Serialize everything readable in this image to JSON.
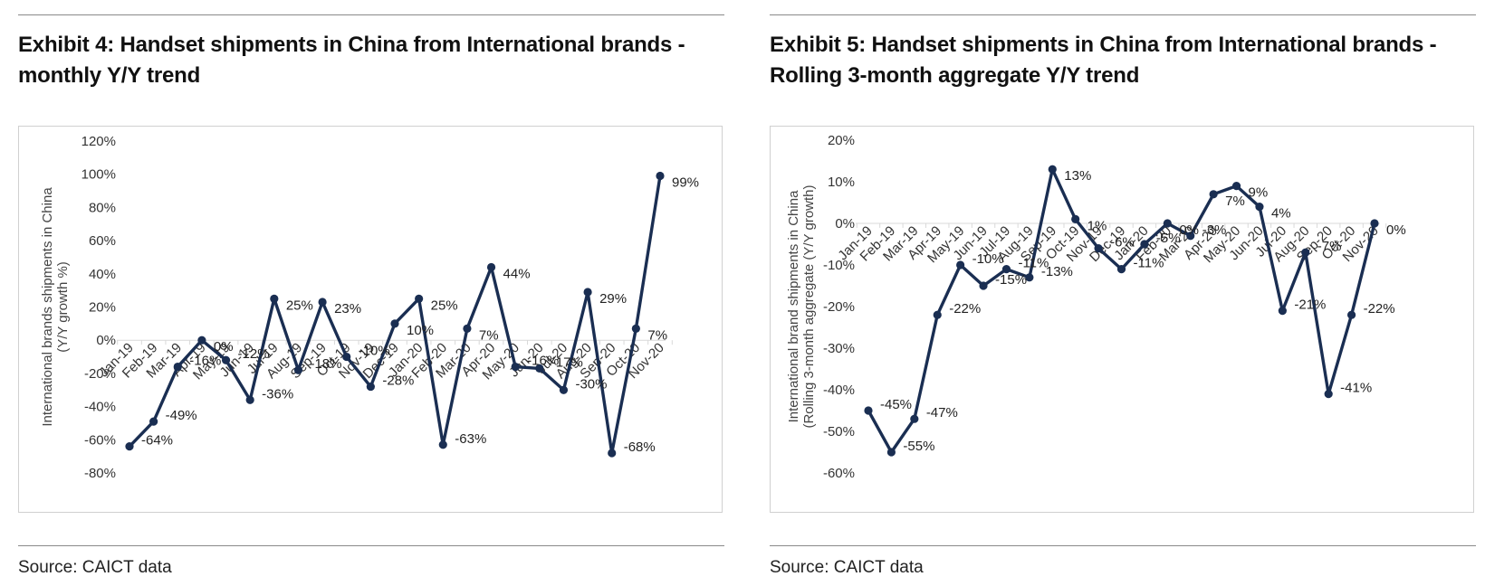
{
  "exhibit4": {
    "title": "Exhibit 4: Handset shipments in China from International brands - monthly Y/Y trend",
    "source": "Source: CAICT data"
  },
  "exhibit5": {
    "title": "Exhibit 5: Handset shipments in China from International brands - Rolling 3-month aggregate Y/Y trend",
    "source": "Source: CAICT data"
  },
  "chart_data": [
    {
      "type": "line",
      "title": "Exhibit 4: Handset shipments in China from International brands - monthly Y/Y trend",
      "ylabel_lines": [
        "International brands shipments in China",
        "(Y/Y growth %)"
      ],
      "xlabel": "",
      "ylim": [
        -80,
        120
      ],
      "yticks": [
        -80,
        -60,
        -40,
        -20,
        0,
        20,
        40,
        60,
        80,
        100,
        120
      ],
      "ytick_suffix": "%",
      "grid": false,
      "color": "#1a2e52",
      "categories": [
        "Jan-19",
        "Feb-19",
        "Mar-19",
        "Apr-19",
        "May-19",
        "Jun-19",
        "Jul-19",
        "Aug-19",
        "Sep-19",
        "Oct-19",
        "Nov-19",
        "Dec-19",
        "Jan-20",
        "Feb-20",
        "Mar-20",
        "Apr-20",
        "May-20",
        "Jun-20",
        "Jul-20",
        "Aug-20",
        "Sep-20",
        "Oct-20",
        "Nov-20"
      ],
      "values": [
        -64,
        -49,
        -16,
        0,
        -12,
        -36,
        25,
        -18,
        23,
        -10,
        -28,
        10,
        25,
        -63,
        7,
        44,
        -16,
        -17,
        -30,
        29,
        -68,
        7,
        99
      ],
      "data_labels": [
        "-64%",
        "-49%",
        "-16%",
        "0%",
        "-12%",
        "-36%",
        "25%",
        "-18%",
        "23%",
        "-10%",
        "-28%",
        "10%",
        "25%",
        "-63%",
        "7%",
        "44%",
        "-16%",
        "-17%",
        "-30%",
        "29%",
        "-68%",
        "7%",
        "99%"
      ]
    },
    {
      "type": "line",
      "title": "Exhibit 5: Handset shipments in China from International brands - Rolling 3-month aggregate Y/Y trend",
      "ylabel_lines": [
        "International brand shipments in China",
        "(Rolling  3-month aggregate (Y/Y growth)"
      ],
      "xlabel": "",
      "ylim": [
        -60,
        20
      ],
      "yticks": [
        -60,
        -50,
        -40,
        -30,
        -20,
        -10,
        0,
        10,
        20
      ],
      "ytick_suffix": "%",
      "grid": false,
      "color": "#1a2e52",
      "categories": [
        "Jan-19",
        "Feb-19",
        "Mar-19",
        "Apr-19",
        "May-19",
        "Jun-19",
        "Jul-19",
        "Aug-19",
        "Sep-19",
        "Oct-19",
        "Nov-19",
        "Dec-19",
        "Jan-20",
        "Feb-20",
        "Mar-20",
        "Apr-20",
        "May-20",
        "Jun-20",
        "Jul-20",
        "Aug-20",
        "Sep-20",
        "Oct-20",
        "Nov-20"
      ],
      "values": [
        -45,
        -55,
        -47,
        -22,
        -10,
        -15,
        -11,
        -13,
        13,
        1,
        -6,
        -11,
        -5,
        0,
        -3,
        7,
        9,
        4,
        -21,
        -7,
        -41,
        -22,
        0
      ],
      "data_labels": [
        "-45%",
        "-55%",
        "-47%",
        "-22%",
        "-10%",
        "-15%",
        "-11%",
        "-13%",
        "13%",
        "1%",
        "-6%",
        "-11%",
        "-5%",
        "0%",
        "-3%",
        "7%",
        "9%",
        "4%",
        "-21%",
        "-7%",
        "-41%",
        "-22%",
        "0%"
      ]
    }
  ]
}
